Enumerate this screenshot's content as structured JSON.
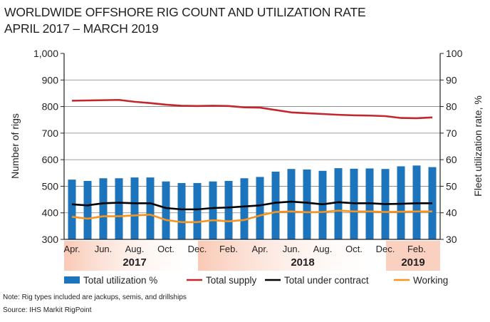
{
  "title_line1": "WORLDWIDE OFFSHORE RIG COUNT AND UTILIZATION RATE",
  "title_line2": "APRIL 2017 – MARCH 2019",
  "note": "Note: Rig types included are jackups, semis, and drillships",
  "source": "Source: IHS Markit RigPoint",
  "chart_data": {
    "type": "bar+line",
    "xlabel": "",
    "ylabel": "Number of rigs",
    "y2label": "Fleet utilization rate, %",
    "ylim": [
      300,
      1000
    ],
    "y2lim": [
      30,
      100
    ],
    "yticks": [
      "300",
      "400",
      "500",
      "600",
      "700",
      "800",
      "900",
      "1,000"
    ],
    "y2ticks": [
      "30",
      "40",
      "50",
      "60",
      "70",
      "80",
      "90",
      "100"
    ],
    "grid": true,
    "legend_position": "bottom",
    "x": [
      "2017-04",
      "2017-05",
      "2017-06",
      "2017-07",
      "2017-08",
      "2017-09",
      "2017-10",
      "2017-11",
      "2017-12",
      "2018-01",
      "2018-02",
      "2018-03",
      "2018-04",
      "2018-05",
      "2018-06",
      "2018-07",
      "2018-08",
      "2018-09",
      "2018-10",
      "2018-11",
      "2018-12",
      "2019-01",
      "2019-02",
      "2019-03"
    ],
    "xtick_labels": [
      {
        "i": 0,
        "label": "Apr."
      },
      {
        "i": 2,
        "label": "Jun."
      },
      {
        "i": 4,
        "label": "Aug."
      },
      {
        "i": 6,
        "label": "Oct."
      },
      {
        "i": 8,
        "label": "Dec."
      },
      {
        "i": 10,
        "label": "Feb."
      },
      {
        "i": 12,
        "label": "Apr."
      },
      {
        "i": 14,
        "label": "Jun."
      },
      {
        "i": 16,
        "label": "Aug."
      },
      {
        "i": 18,
        "label": "Oct."
      },
      {
        "i": 20,
        "label": "Dec."
      },
      {
        "i": 22,
        "label": "Feb."
      }
    ],
    "years": [
      {
        "label": "2017",
        "start": 0,
        "end": 8
      },
      {
        "label": "2018",
        "start": 9,
        "end": 20
      },
      {
        "label": "2019",
        "start": 21,
        "end": 23
      }
    ],
    "series": [
      {
        "name": "Total utilization %",
        "type": "bar",
        "axis": "right",
        "color": "#1c75bc",
        "values": [
          52.5,
          52,
          53,
          53,
          53.3,
          53.3,
          51.8,
          51.2,
          51.2,
          51.8,
          52,
          53,
          53.5,
          55.5,
          56.5,
          56.3,
          55.8,
          56.8,
          56.6,
          56.7,
          56.5,
          57.5,
          57.8,
          57.2
        ]
      },
      {
        "name": "Total supply",
        "type": "line",
        "axis": "left",
        "color": "#c1272d",
        "values": [
          822,
          823,
          824,
          825,
          818,
          813,
          807,
          803,
          802,
          803,
          802,
          797,
          796,
          787,
          778,
          775,
          772,
          769,
          767,
          766,
          764,
          757,
          756,
          759
        ]
      },
      {
        "name": "Total under contract",
        "type": "line",
        "axis": "left",
        "color": "#000000",
        "values": [
          432,
          428,
          436,
          438,
          436,
          436,
          418,
          413,
          413,
          418,
          420,
          424,
          428,
          438,
          442,
          438,
          432,
          440,
          436,
          436,
          433,
          434,
          436,
          436
        ]
      },
      {
        "name": "Working",
        "type": "line",
        "axis": "left",
        "color": "#f7941d",
        "values": [
          385,
          378,
          387,
          387,
          390,
          393,
          373,
          365,
          365,
          372,
          368,
          373,
          390,
          403,
          405,
          402,
          403,
          408,
          405,
          405,
          403,
          404,
          405,
          405
        ]
      }
    ]
  }
}
